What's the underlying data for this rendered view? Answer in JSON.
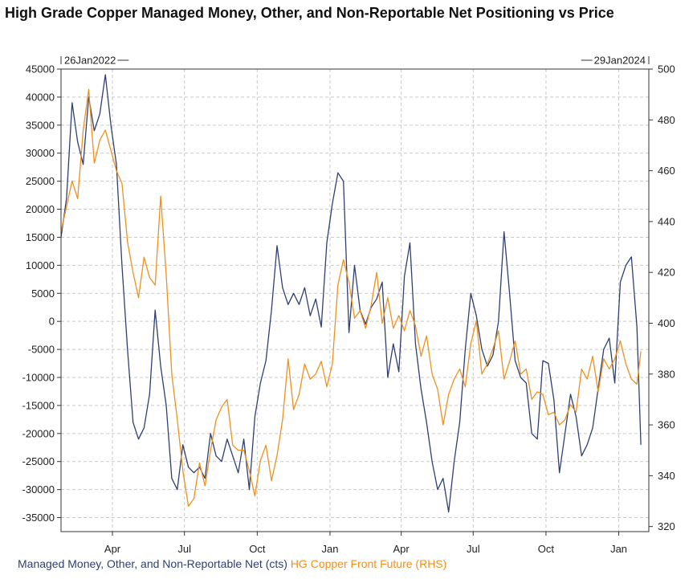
{
  "chart_data": {
    "type": "line",
    "title": "High Grade Copper Managed Money, Other, and Non-Reportable Net Positioning vs Price",
    "start_label": "26Jan2022",
    "end_label": "29Jan2024",
    "x_tick_labels": [
      "Apr",
      "Jul",
      "Oct",
      "Jan",
      "Apr",
      "Jul",
      "Oct",
      "Jan"
    ],
    "left_axis": {
      "ylim": [
        -37500,
        45000
      ],
      "ticks": [
        45000,
        40000,
        35000,
        30000,
        25000,
        20000,
        15000,
        10000,
        5000,
        0,
        -5000,
        -10000,
        -15000,
        -20000,
        -25000,
        -30000,
        -35000
      ]
    },
    "right_axis": {
      "ylim": [
        318,
        500
      ],
      "ticks": [
        500,
        480,
        460,
        440,
        420,
        400,
        380,
        360,
        340,
        320
      ]
    },
    "grid": true,
    "colors": {
      "net": "#2f3f73",
      "price": "#f0901e"
    },
    "series": [
      {
        "name": "Managed Money, Other, and Non-Reportable Net (cts)",
        "axis": "left",
        "x": [
          "2022-01-26",
          "2022-02-02",
          "2022-02-09",
          "2022-02-16",
          "2022-02-23",
          "2022-03-02",
          "2022-03-09",
          "2022-03-16",
          "2022-03-23",
          "2022-03-30",
          "2022-04-06",
          "2022-04-13",
          "2022-04-20",
          "2022-04-27",
          "2022-05-04",
          "2022-05-11",
          "2022-05-18",
          "2022-05-25",
          "2022-06-01",
          "2022-06-08",
          "2022-06-15",
          "2022-06-22",
          "2022-06-29",
          "2022-07-06",
          "2022-07-13",
          "2022-07-20",
          "2022-07-27",
          "2022-08-03",
          "2022-08-10",
          "2022-08-17",
          "2022-08-24",
          "2022-08-31",
          "2022-09-07",
          "2022-09-14",
          "2022-09-21",
          "2022-09-28",
          "2022-10-05",
          "2022-10-12",
          "2022-10-19",
          "2022-10-26",
          "2022-11-02",
          "2022-11-09",
          "2022-11-16",
          "2022-11-23",
          "2022-11-30",
          "2022-12-07",
          "2022-12-14",
          "2022-12-21",
          "2022-12-28",
          "2023-01-04",
          "2023-01-11",
          "2023-01-18",
          "2023-01-25",
          "2023-02-01",
          "2023-02-08",
          "2023-02-15",
          "2023-02-22",
          "2023-03-01",
          "2023-03-08",
          "2023-03-15",
          "2023-03-22",
          "2023-03-29",
          "2023-04-05",
          "2023-04-12",
          "2023-04-19",
          "2023-04-26",
          "2023-05-03",
          "2023-05-10",
          "2023-05-17",
          "2023-05-24",
          "2023-05-31",
          "2023-06-07",
          "2023-06-14",
          "2023-06-21",
          "2023-06-28",
          "2023-07-05",
          "2023-07-12",
          "2023-07-19",
          "2023-07-26",
          "2023-08-02",
          "2023-08-09",
          "2023-08-16",
          "2023-08-23",
          "2023-08-30",
          "2023-09-06",
          "2023-09-13",
          "2023-09-20",
          "2023-09-27",
          "2023-10-04",
          "2023-10-11",
          "2023-10-18",
          "2023-10-25",
          "2023-11-01",
          "2023-11-08",
          "2023-11-15",
          "2023-11-22",
          "2023-11-29",
          "2023-12-06",
          "2023-12-13",
          "2023-12-20",
          "2023-12-27",
          "2024-01-03",
          "2024-01-10",
          "2024-01-17",
          "2024-01-24",
          "2024-01-29"
        ],
        "values": [
          15000,
          22000,
          39000,
          32000,
          28000,
          40000,
          34000,
          37000,
          44000,
          35000,
          28000,
          10000,
          -5000,
          -18000,
          -21000,
          -19000,
          -13000,
          2000,
          -8000,
          -15000,
          -28000,
          -30000,
          -22000,
          -26000,
          -27000,
          -26000,
          -28000,
          -20000,
          -24000,
          -25000,
          -21000,
          -24000,
          -27000,
          -21000,
          -30000,
          -17000,
          -11000,
          -7000,
          2000,
          13500,
          6000,
          3000,
          5000,
          3000,
          6000,
          1000,
          4000,
          -1000,
          14000,
          21000,
          26500,
          25000,
          -2000,
          10000,
          2000,
          -500,
          2500,
          4000,
          7000,
          -10000,
          -4000,
          -9000,
          8000,
          14000,
          -4000,
          -12000,
          -18000,
          -25000,
          -30000,
          -28000,
          -34000,
          -25000,
          -18000,
          -5000,
          5000,
          1000,
          -5000,
          -8000,
          -6000,
          0,
          16000,
          5000,
          -7000,
          -10000,
          -11000,
          -20000,
          -21000,
          -7000,
          -7500,
          -14000,
          -27000,
          -20000,
          -13000,
          -17000,
          -24000,
          -22000,
          -19000,
          -12000,
          -5000,
          -3000,
          -11000,
          7000,
          10000,
          11500,
          -1000,
          -22000
        ]
      },
      {
        "name": "HG Copper Front Future (RHS)",
        "axis": "right",
        "x": [
          "2022-01-26",
          "2022-02-02",
          "2022-02-09",
          "2022-02-16",
          "2022-02-23",
          "2022-03-02",
          "2022-03-09",
          "2022-03-16",
          "2022-03-23",
          "2022-03-30",
          "2022-04-06",
          "2022-04-13",
          "2022-04-20",
          "2022-04-27",
          "2022-05-04",
          "2022-05-11",
          "2022-05-18",
          "2022-05-25",
          "2022-06-01",
          "2022-06-08",
          "2022-06-15",
          "2022-06-22",
          "2022-06-29",
          "2022-07-06",
          "2022-07-13",
          "2022-07-20",
          "2022-07-27",
          "2022-08-03",
          "2022-08-10",
          "2022-08-17",
          "2022-08-24",
          "2022-08-31",
          "2022-09-07",
          "2022-09-14",
          "2022-09-21",
          "2022-09-28",
          "2022-10-05",
          "2022-10-12",
          "2022-10-19",
          "2022-10-26",
          "2022-11-02",
          "2022-11-09",
          "2022-11-16",
          "2022-11-23",
          "2022-11-30",
          "2022-12-07",
          "2022-12-14",
          "2022-12-21",
          "2022-12-28",
          "2023-01-04",
          "2023-01-11",
          "2023-01-18",
          "2023-01-25",
          "2023-02-01",
          "2023-02-08",
          "2023-02-15",
          "2023-02-22",
          "2023-03-01",
          "2023-03-08",
          "2023-03-15",
          "2023-03-22",
          "2023-03-29",
          "2023-04-05",
          "2023-04-12",
          "2023-04-19",
          "2023-04-26",
          "2023-05-03",
          "2023-05-10",
          "2023-05-17",
          "2023-05-24",
          "2023-05-31",
          "2023-06-07",
          "2023-06-14",
          "2023-06-21",
          "2023-06-28",
          "2023-07-05",
          "2023-07-12",
          "2023-07-19",
          "2023-07-26",
          "2023-08-02",
          "2023-08-09",
          "2023-08-16",
          "2023-08-23",
          "2023-08-30",
          "2023-09-06",
          "2023-09-13",
          "2023-09-20",
          "2023-09-27",
          "2023-10-04",
          "2023-10-11",
          "2023-10-18",
          "2023-10-25",
          "2023-11-01",
          "2023-11-08",
          "2023-11-15",
          "2023-11-22",
          "2023-11-29",
          "2023-12-06",
          "2023-12-13",
          "2023-12-20",
          "2023-12-27",
          "2024-01-03",
          "2024-01-10",
          "2024-01-17",
          "2024-01-24",
          "2024-01-29"
        ],
        "values": [
          436,
          446,
          456,
          449,
          476,
          492,
          463,
          472,
          476,
          468,
          460,
          455,
          432,
          420,
          410,
          426,
          418,
          415,
          450,
          419,
          380,
          362,
          342,
          328,
          331,
          345,
          336,
          350,
          362,
          367,
          370,
          352,
          350,
          350,
          342,
          332,
          346,
          352,
          338,
          348,
          362,
          386,
          366,
          372,
          384,
          378,
          380,
          385,
          375,
          384,
          415,
          425,
          416,
          402,
          405,
          398,
          407,
          420,
          400,
          410,
          398,
          403,
          397,
          405,
          399,
          387,
          395,
          380,
          374,
          360,
          372,
          378,
          382,
          375,
          392,
          401,
          380,
          384,
          390,
          397,
          378,
          385,
          393,
          380,
          382,
          370,
          373,
          372,
          364,
          365,
          360,
          362,
          368,
          365,
          382,
          378,
          387,
          373,
          386,
          382,
          386,
          393,
          384,
          378,
          376,
          389
        ]
      }
    ]
  }
}
